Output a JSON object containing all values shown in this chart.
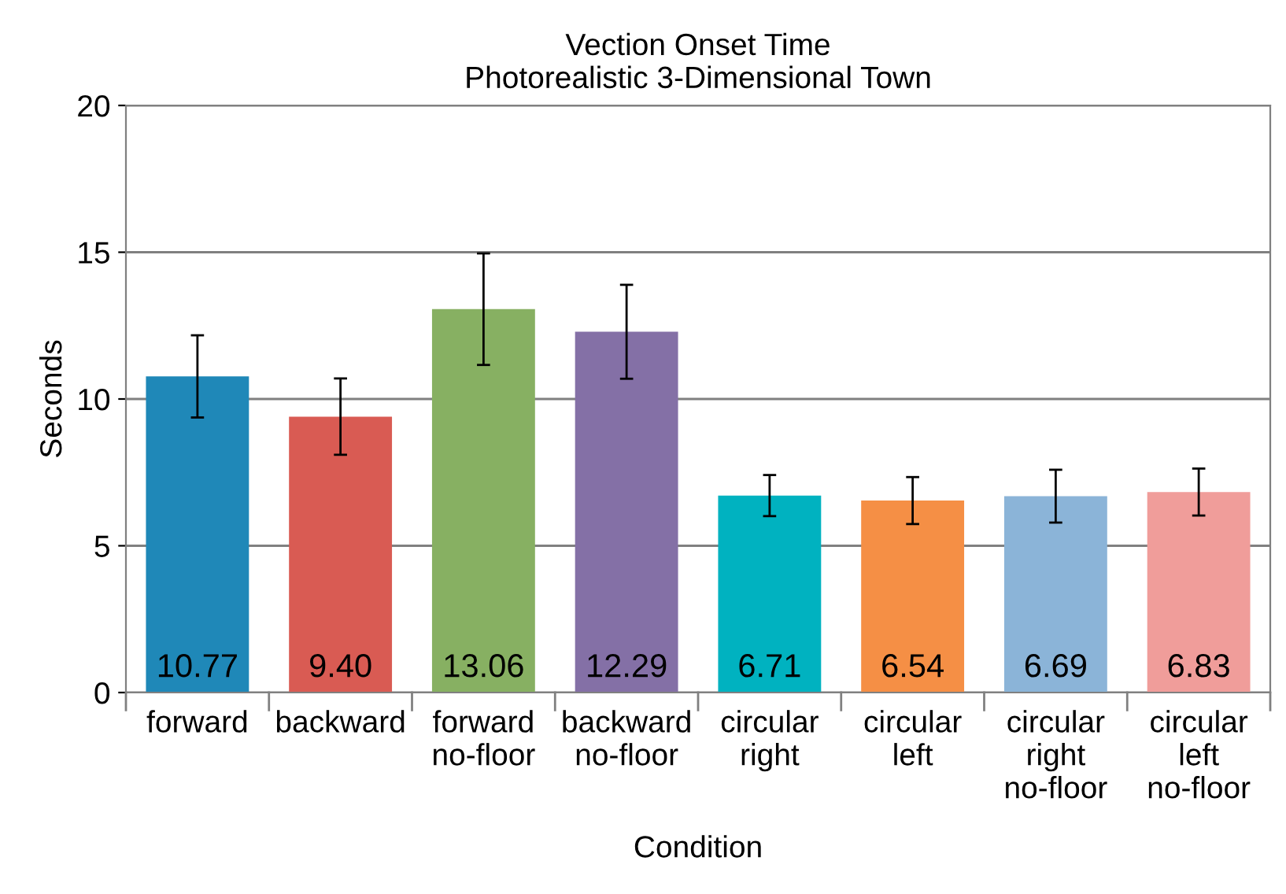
{
  "chart_data": {
    "type": "bar",
    "title": "Vection Onset Time\nPhotorealistic 3-Dimensional Town",
    "xlabel": "Condition",
    "ylabel": "Seconds",
    "categories": [
      "forward",
      "backward",
      "forward\nno-floor",
      "backward\nno-floor",
      "circular\nright",
      "circular\nleft",
      "circular\nright\nno-floor",
      "circular\nleft\nno-floor"
    ],
    "values": [
      10.77,
      9.4,
      13.06,
      12.29,
      6.71,
      6.54,
      6.69,
      6.83
    ],
    "value_labels": [
      "10.77",
      "9.40",
      "13.06",
      "12.29",
      "6.71",
      "6.54",
      "6.69",
      "6.83"
    ],
    "errors": [
      1.4,
      1.3,
      1.9,
      1.6,
      0.7,
      0.8,
      0.9,
      0.8
    ],
    "colors": [
      "#1f88b8",
      "#d95b53",
      "#87b062",
      "#8470a6",
      "#00b2c0",
      "#f58f45",
      "#8bb4d8",
      "#f09d9a"
    ],
    "ylim": [
      0,
      20
    ],
    "yticks": [
      0,
      5,
      10,
      15,
      20
    ],
    "grid": "y"
  }
}
